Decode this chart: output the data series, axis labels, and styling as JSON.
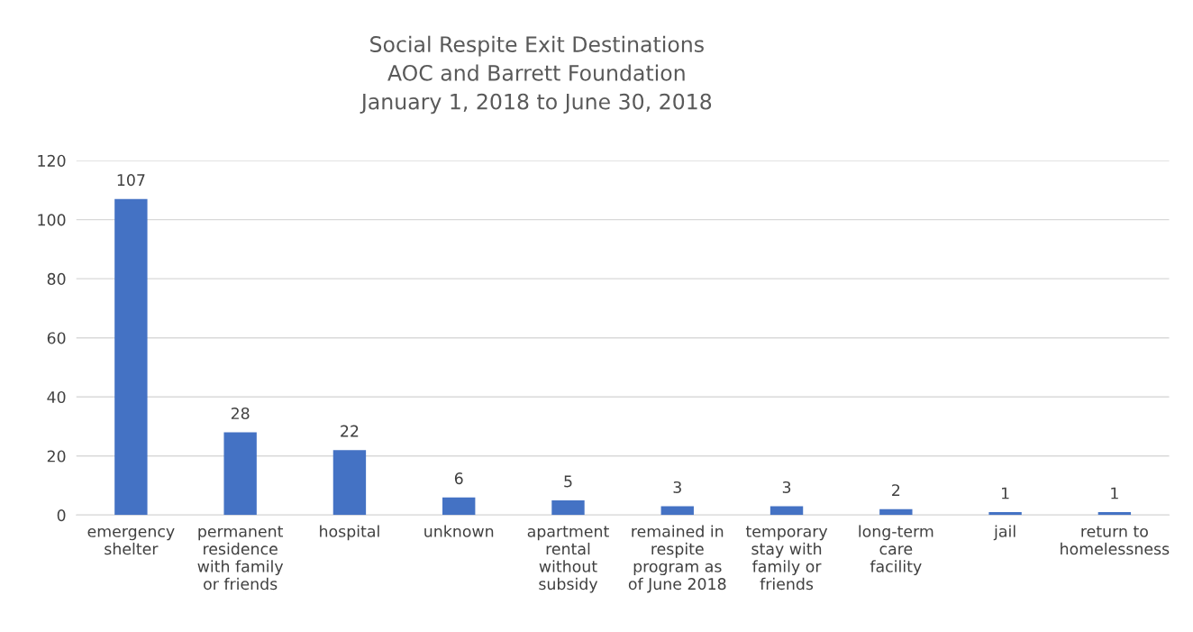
{
  "chart_data": {
    "type": "bar",
    "title": "Social Respite Exit Destinations\nAOC and Barrett Foundation\nJanuary 1, 2018 to June 30, 2018",
    "categories": [
      "emergency shelter",
      "permanent residence with family or friends",
      "hospital",
      "unknown",
      "apartment rental without subsidy",
      "remained in respite program as of June 2018",
      "temporary stay with family or friends",
      "long-term care facility",
      "jail",
      "return to homelessness"
    ],
    "values": [
      107,
      28,
      22,
      6,
      5,
      3,
      3,
      2,
      1,
      1
    ],
    "color": "#4472c4",
    "ylim": [
      0,
      120
    ],
    "yticks": [
      0,
      20,
      40,
      60,
      80,
      100,
      120
    ],
    "grid": "y",
    "data_labels": true,
    "legend": false
  }
}
